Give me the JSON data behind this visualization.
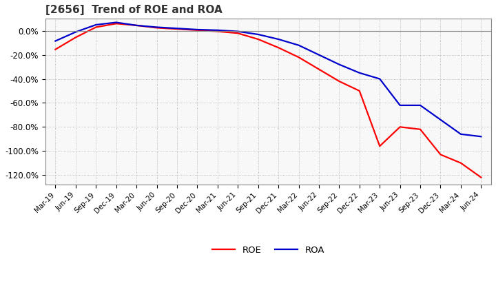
{
  "title": "[2656]  Trend of ROE and ROA",
  "title_fontsize": 11,
  "background_color": "#ffffff",
  "plot_bg_color": "#f8f8f8",
  "grid_color": "#aaaaaa",
  "line_roe_color": "#ff0000",
  "line_roa_color": "#0000cc",
  "ylim": [
    -1.28,
    0.1
  ],
  "yticks": [
    0.0,
    -0.2,
    -0.4,
    -0.6,
    -0.8,
    -1.0,
    -1.2
  ],
  "ytick_labels": [
    "0.0%",
    "-20.0%",
    "-40.0%",
    "-60.0%",
    "-80.0%",
    "-100.0%",
    "-120.0%"
  ],
  "x_labels": [
    "Mar-19",
    "Jun-19",
    "Sep-19",
    "Dec-19",
    "Mar-20",
    "Jun-20",
    "Sep-20",
    "Dec-20",
    "Mar-21",
    "Jun-21",
    "Sep-21",
    "Dec-21",
    "Mar-22",
    "Jun-22",
    "Sep-22",
    "Dec-22",
    "Mar-23",
    "Jun-23",
    "Sep-23",
    "Dec-23",
    "Mar-24",
    "Jun-24"
  ],
  "roe_values": [
    -0.155,
    -0.055,
    0.03,
    0.06,
    0.045,
    0.025,
    0.015,
    0.005,
    -0.005,
    -0.02,
    -0.07,
    -0.14,
    -0.22,
    -0.32,
    -0.42,
    -0.5,
    -0.96,
    -0.8,
    -0.82,
    -1.03,
    -1.1,
    -1.22
  ],
  "roa_values": [
    -0.085,
    -0.01,
    0.05,
    0.07,
    0.045,
    0.03,
    0.02,
    0.01,
    0.005,
    -0.005,
    -0.03,
    -0.07,
    -0.12,
    -0.2,
    -0.28,
    -0.35,
    -0.4,
    -0.62,
    -0.62,
    -0.74,
    -0.86,
    -0.88
  ],
  "legend_labels": [
    "ROE",
    "ROA"
  ],
  "linewidth": 1.6
}
